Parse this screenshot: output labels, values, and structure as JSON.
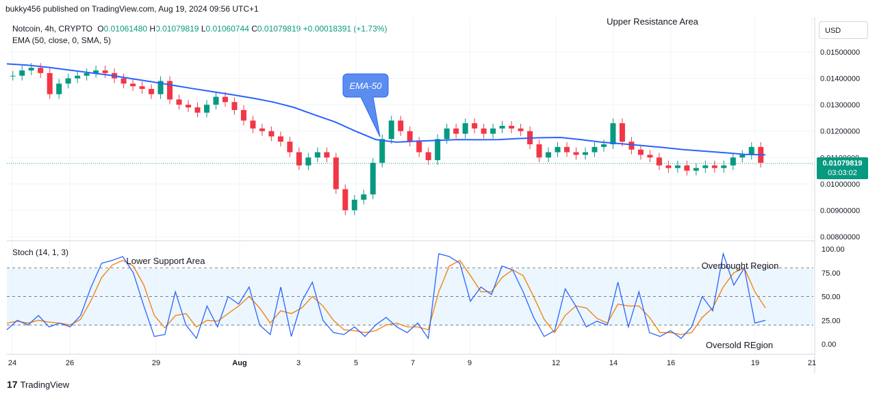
{
  "header": {
    "publisher": "bukky456 published on TradingView.com, Aug 19, 2024 09:56 UTC+1"
  },
  "legend": {
    "symbol": "Notcoin, 4h, CRYPTO",
    "o_label": "O",
    "o": "0.01061480",
    "h_label": "H",
    "h": "0.01079819",
    "l_label": "L",
    "l": "0.01060744",
    "c_label": "C",
    "c": "0.01079819",
    "change": "+0.00018391 (+1.73%)",
    "ema": "EMA (50, close, 0, SMA, 5)",
    "stoch": "Stoch (14, 1, 3)"
  },
  "currency": "USD",
  "price_tag": {
    "price": "0.01079819",
    "countdown": "03:03:02"
  },
  "footer": {
    "brand": "TradingView"
  },
  "colors": {
    "up": "#089981",
    "down": "#f23645",
    "ema": "#2962ff",
    "stoch_k": "#2962ff",
    "stoch_d": "#f57c00",
    "band": "#e3f2fd"
  },
  "chart_data": {
    "type": "candlestick",
    "price_axis": {
      "min": 0.008,
      "max": 0.0155,
      "ticks": [
        "0.01500000",
        "0.01400000",
        "0.01300000",
        "0.01200000",
        "0.01100000",
        "0.01000000",
        "0.00900000",
        "0.00800000"
      ]
    },
    "x_ticks": [
      "24",
      "26",
      "29",
      "Aug",
      "3",
      "5",
      "7",
      "9",
      "12",
      "14",
      "16",
      "19",
      "21"
    ],
    "annotations": {
      "upper": "Upper Resistance Area",
      "lower": "Lower Support Area",
      "overbought": "Overbought Region",
      "oversold": "Oversold REgion",
      "ema_callout": "EMA-50"
    },
    "ema_series": [
      0.01455,
      0.0145,
      0.01442,
      0.01432,
      0.01422,
      0.01412,
      0.014,
      0.01388,
      0.01375,
      0.01362,
      0.0135,
      0.01338,
      0.01325,
      0.0131,
      0.0129,
      0.01262,
      0.01235,
      0.012,
      0.01168,
      0.01158,
      0.01162,
      0.01165,
      0.01168,
      0.01167,
      0.01168,
      0.01172,
      0.01175,
      0.01176,
      0.01168,
      0.01158,
      0.01152,
      0.01145,
      0.01138,
      0.0113,
      0.01124,
      0.01118,
      0.01112,
      0.0111
    ],
    "stoch": {
      "levels": [
        80,
        50,
        20
      ],
      "axis_ticks": [
        "100.00",
        "75.00",
        "50.00",
        "25.00",
        "0.00"
      ],
      "k": [
        15,
        25,
        20,
        30,
        18,
        22,
        18,
        30,
        60,
        85,
        88,
        92,
        75,
        40,
        8,
        10,
        55,
        20,
        6,
        40,
        18,
        50,
        42,
        60,
        20,
        10,
        60,
        8,
        45,
        65,
        25,
        12,
        10,
        18,
        8,
        20,
        28,
        18,
        12,
        22,
        6,
        95,
        92,
        85,
        45,
        60,
        52,
        82,
        78,
        55,
        28,
        8,
        14,
        58,
        40,
        18,
        24,
        20,
        65,
        18,
        55,
        12,
        8,
        14,
        6,
        18,
        50,
        35,
        95,
        62,
        80,
        22,
        25
      ],
      "d": [
        22,
        24,
        22,
        25,
        23,
        22,
        20,
        26,
        46,
        70,
        83,
        88,
        82,
        62,
        30,
        17,
        30,
        32,
        18,
        25,
        24,
        32,
        40,
        50,
        38,
        22,
        35,
        32,
        38,
        50,
        40,
        25,
        15,
        14,
        12,
        14,
        20,
        22,
        18,
        18,
        15,
        55,
        82,
        88,
        72,
        55,
        55,
        70,
        78,
        72,
        50,
        26,
        12,
        30,
        40,
        38,
        27,
        22,
        42,
        40,
        40,
        28,
        12,
        12,
        10,
        12,
        28,
        38,
        60,
        75,
        80,
        55,
        38
      ]
    }
  }
}
